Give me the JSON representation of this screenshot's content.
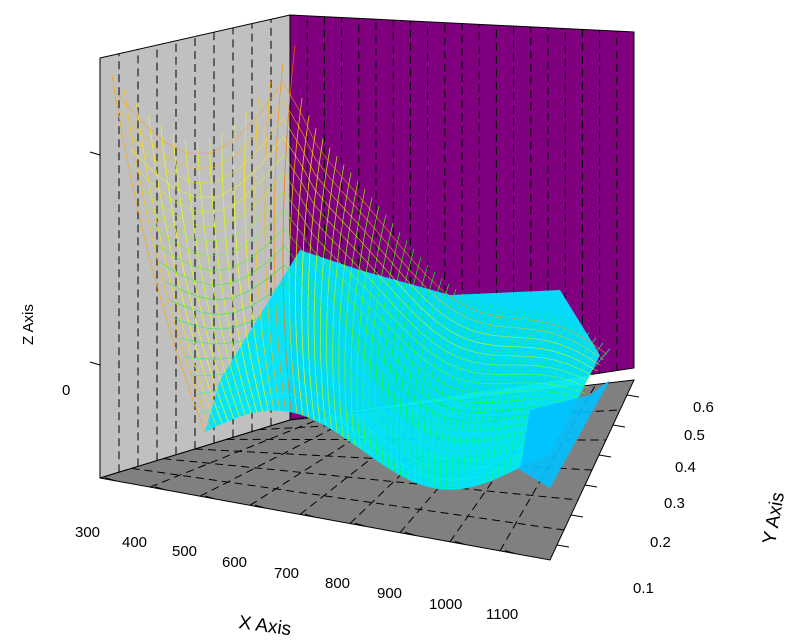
{
  "chart_data": {
    "type": "surface3d",
    "title": "",
    "xlabel": "X Axis",
    "ylabel": "Y Axis",
    "zlabel": "Z Axis",
    "x_ticks": [
      "300",
      "400",
      "500",
      "600",
      "700",
      "800",
      "900",
      "1000",
      "1100"
    ],
    "y_ticks": [
      "0.1",
      "0.2",
      "0.3",
      "0.4",
      "0.5",
      "0.6"
    ],
    "z_ticks": [
      "0"
    ],
    "xlim": [
      300,
      1100
    ],
    "ylim": [
      0.05,
      0.65
    ],
    "grid": true,
    "colormap": "rainbow",
    "colors": {
      "back_wall": "#800080",
      "side_wall": "#c0c0c0",
      "floor": "#808080",
      "mesh_low": "#00e5ff",
      "mesh_high": "#ff5000"
    }
  }
}
